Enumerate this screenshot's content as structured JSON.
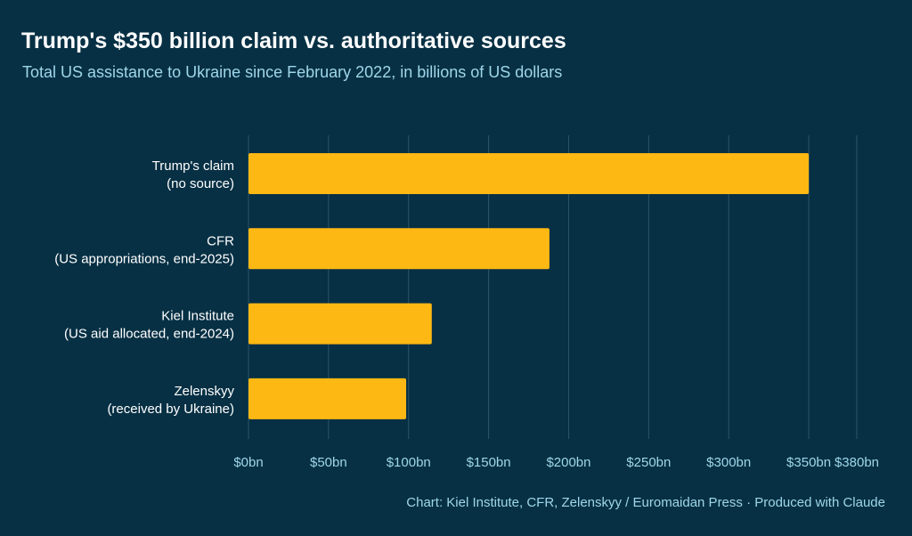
{
  "chart_data": {
    "type": "bar",
    "orientation": "horizontal",
    "title": "Trump's $350 billion claim vs. authoritative sources",
    "subtitle": "Total US assistance to Ukraine since February 2022, in billions of US dollars",
    "caption": "Chart: Kiel Institute, CFR, Zelenskyy / Euromaidan Press · Produced with Claude",
    "categories": [
      [
        "Trump's claim",
        "(no source)"
      ],
      [
        "CFR",
        "(US appropriations, end-2025)"
      ],
      [
        "Kiel Institute",
        "(US aid allocated, end-2024)"
      ],
      [
        "Zelenskyy",
        "(received by Ukraine)"
      ]
    ],
    "values": [
      350,
      188,
      114.5,
      98.5
    ],
    "xlim": [
      0,
      380
    ],
    "ticks": [
      0,
      50,
      100,
      150,
      200,
      250,
      300,
      350,
      380
    ],
    "tick_labels": [
      "$0bn",
      "$50bn",
      "$100bn",
      "$150bn",
      "$200bn",
      "$250bn",
      "$300bn",
      "$350bn",
      "$380bn"
    ],
    "grid": true,
    "legend": "none",
    "colors": {
      "background": "#073044",
      "bar": "#fdb813",
      "title": "#ffffff",
      "subtitle": "#9fd6ea",
      "grid": "#2f5466"
    }
  }
}
